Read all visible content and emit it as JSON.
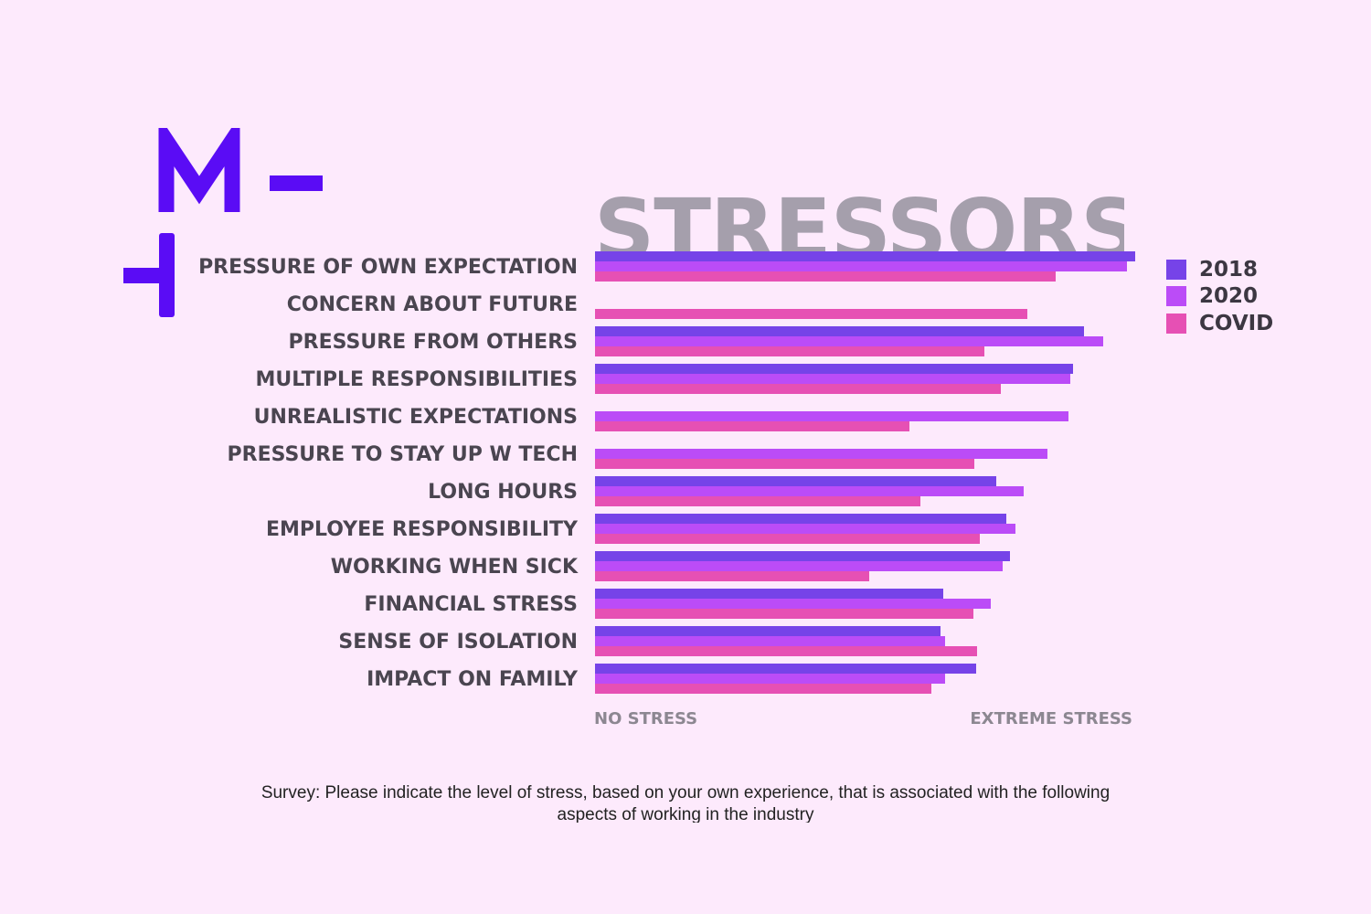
{
  "logo": {
    "name": "brand-logo",
    "color": "#5a0cf5"
  },
  "chart_data": {
    "type": "bar",
    "orientation": "horizontal",
    "title": "STRESSORS",
    "categories": [
      "PRESSURE OF OWN EXPECTATION",
      "CONCERN ABOUT FUTURE",
      "PRESSURE FROM OTHERS",
      "MULTIPLE RESPONSIBILITIES",
      "UNREALISTIC EXPECTATIONS",
      "PRESSURE TO STAY UP W TECH",
      "LONG HOURS",
      "EMPLOYEE RESPONSIBILITY",
      "WORKING WHEN SICK",
      "FINANCIAL STRESS",
      "SENSE OF ISOLATION",
      "IMPACT ON FAMILY"
    ],
    "series": [
      {
        "name": "2018",
        "color": "#7643e8",
        "values": [
          1.0,
          null,
          0.905,
          0.885,
          null,
          null,
          0.742,
          0.762,
          0.768,
          0.645,
          0.64,
          0.705
        ]
      },
      {
        "name": "2020",
        "color": "#bb4cf7",
        "values": [
          0.985,
          null,
          0.94,
          0.88,
          0.877,
          0.838,
          0.793,
          0.778,
          0.755,
          0.732,
          0.648,
          0.648
        ]
      },
      {
        "name": "COVID",
        "color": "#e650b4",
        "values": [
          0.853,
          0.8,
          0.72,
          0.752,
          0.582,
          0.703,
          0.602,
          0.713,
          0.508,
          0.7,
          0.708,
          0.623
        ]
      }
    ],
    "xlim": [
      0,
      1
    ],
    "axis_labels": {
      "min": "NO STRESS",
      "max": "EXTREME STRESS"
    },
    "legend_position": "right"
  },
  "caption": "Survey: Please indicate the level of stress, based on your own experience, that is associated with the following aspects of working in the industry"
}
